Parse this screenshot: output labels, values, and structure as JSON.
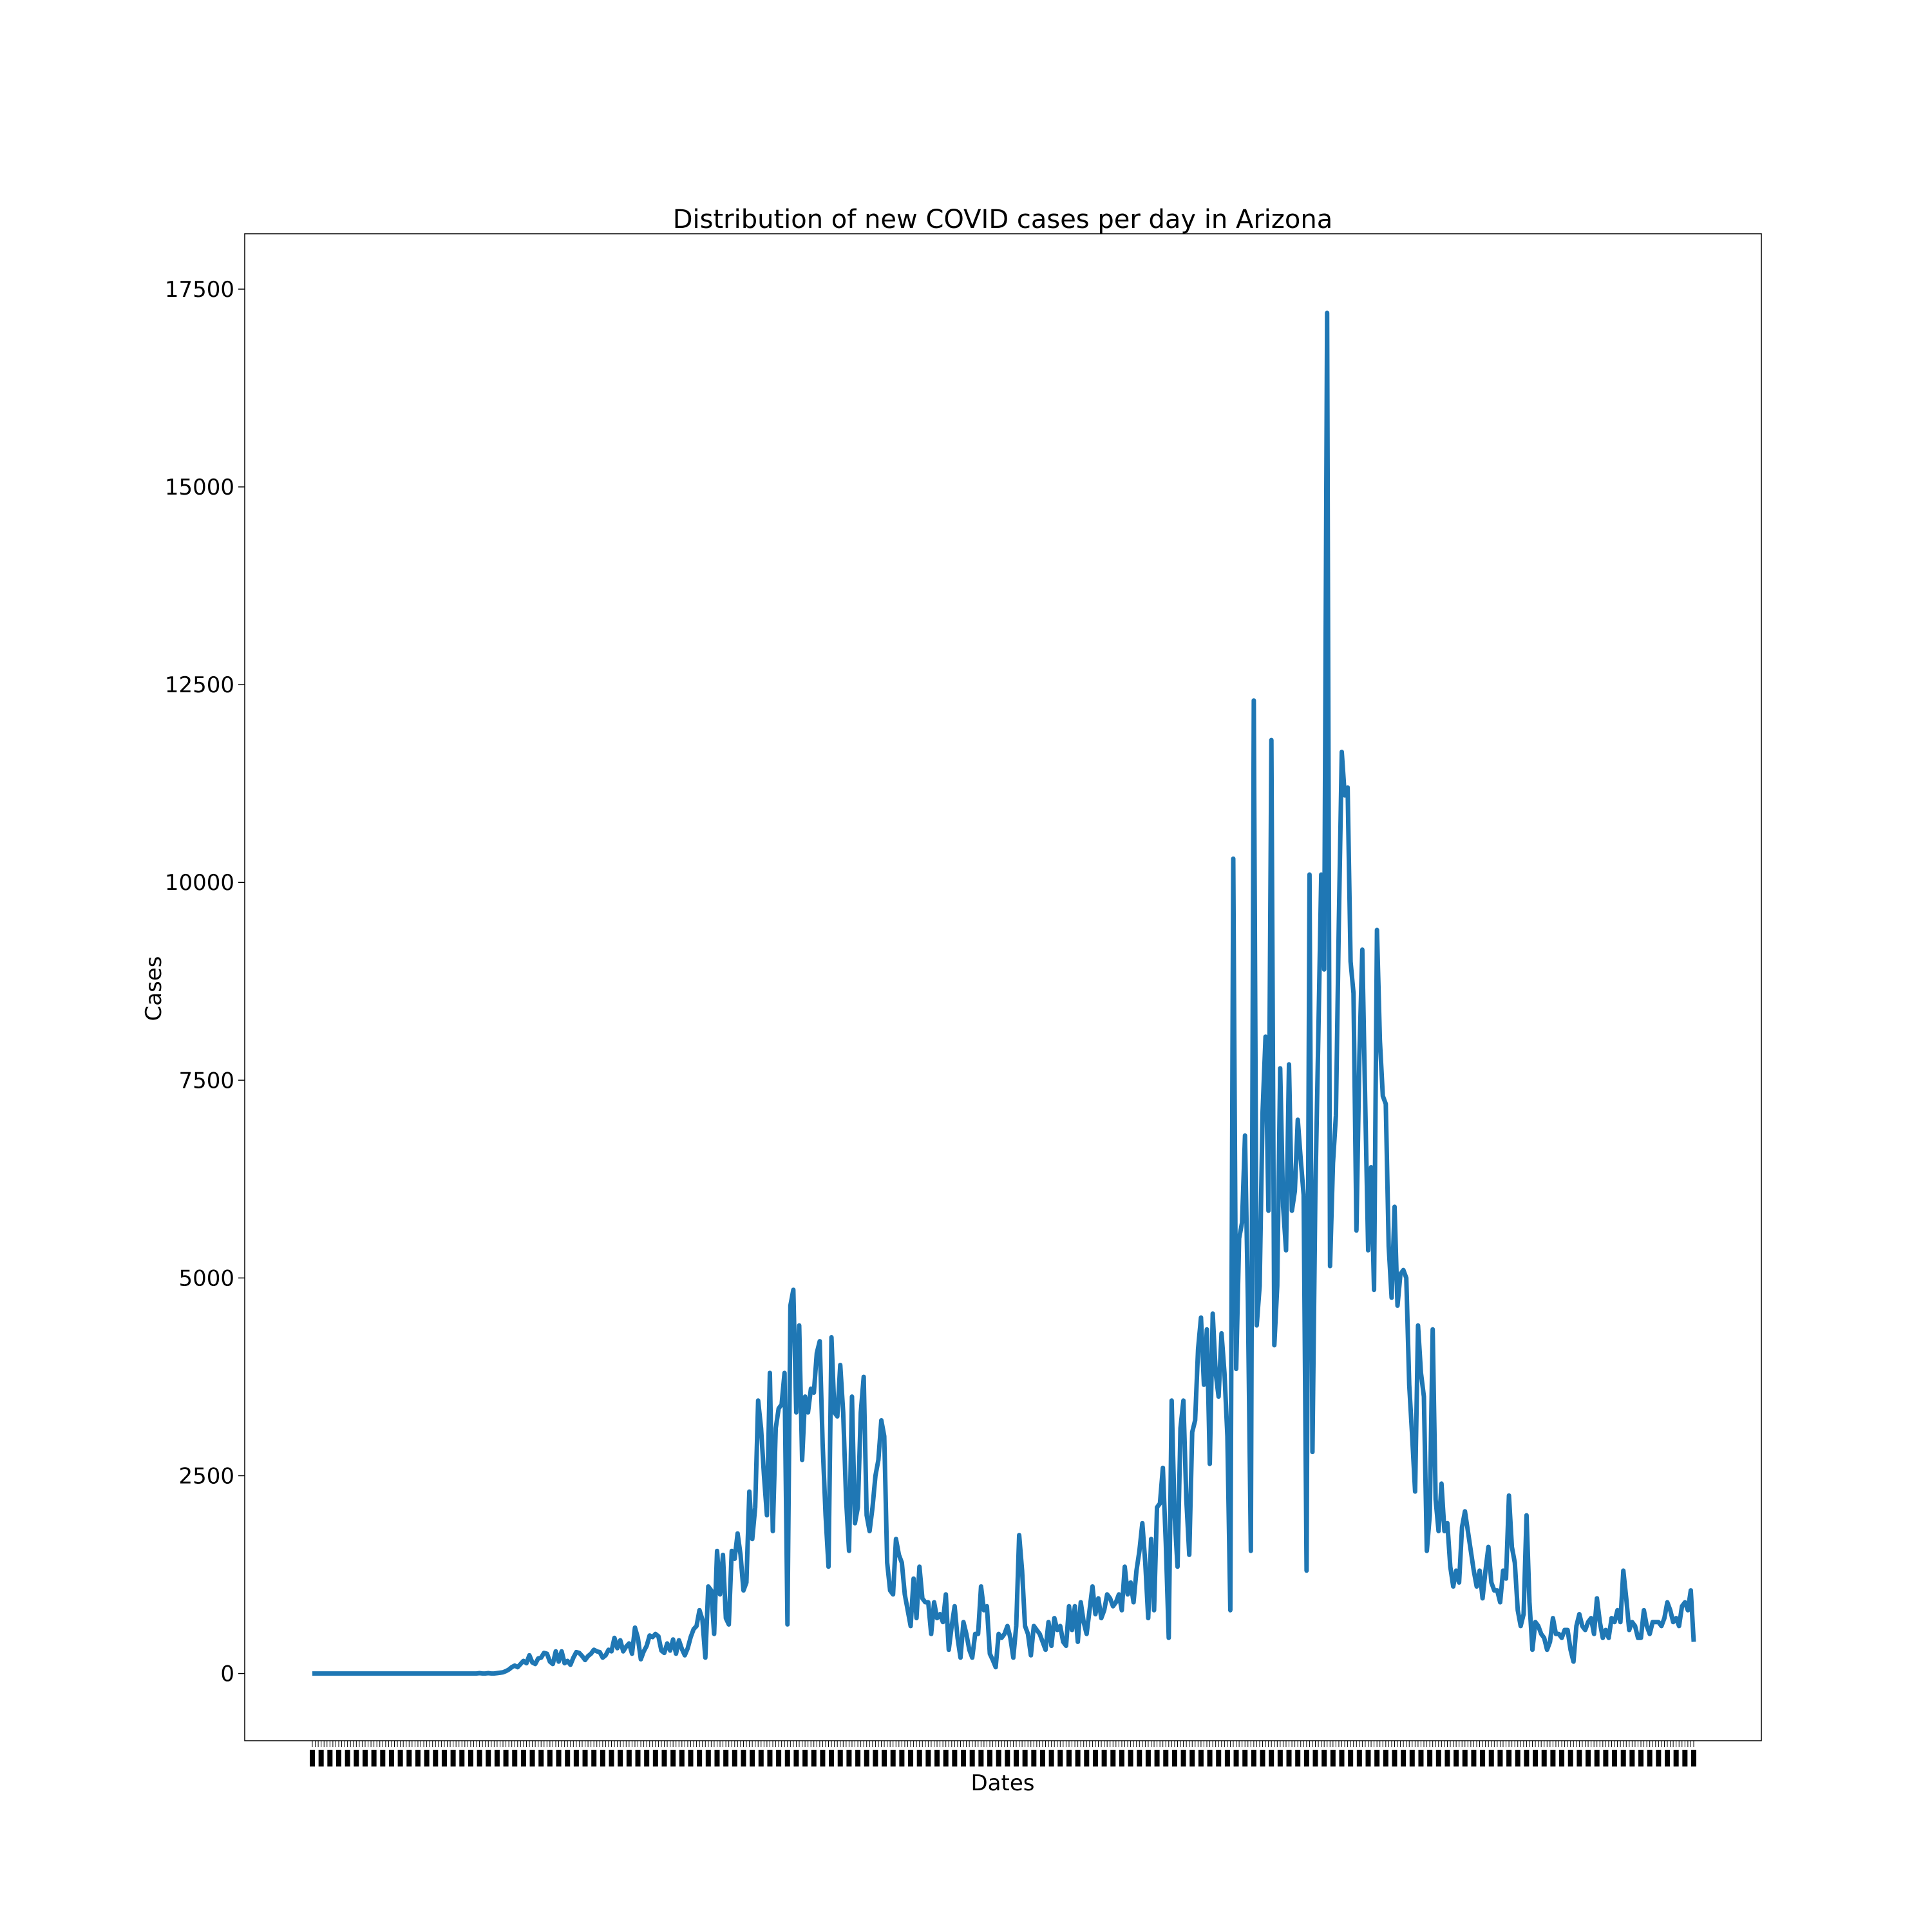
{
  "chart_data": {
    "type": "line",
    "title": "Distribution of new COVID cases per day in Arizona",
    "xlabel": "Dates",
    "ylabel": "Cases",
    "ylim": [
      -850,
      18200
    ],
    "yticks": [
      0,
      2500,
      5000,
      7500,
      10000,
      12500,
      15000,
      17500
    ],
    "ytick_labels": [
      "0",
      "2500",
      "5000",
      "7500",
      "10000",
      "12500",
      "15000",
      "17500"
    ],
    "xtick_labels_note": "",
    "grid": false,
    "legend": "none",
    "line_color": "#1f77b4",
    "series": [
      {
        "values": [
          0,
          0,
          0,
          0,
          0,
          0,
          0,
          0,
          0,
          0,
          0,
          0,
          0,
          0,
          0,
          0,
          0,
          0,
          0,
          0,
          0,
          0,
          0,
          0,
          0,
          0,
          0,
          0,
          0,
          0,
          0,
          0,
          0,
          0,
          0,
          0,
          0,
          0,
          0,
          0,
          0,
          0,
          0,
          0,
          0,
          0,
          0,
          0,
          0,
          0,
          0,
          0,
          0,
          0,
          0,
          0,
          0,
          5,
          0,
          0,
          5,
          0,
          0,
          5,
          10,
          15,
          30,
          50,
          80,
          100,
          80,
          120,
          160,
          130,
          230,
          140,
          120,
          190,
          200,
          260,
          250,
          150,
          120,
          280,
          150,
          280,
          130,
          160,
          110,
          200,
          270,
          260,
          220,
          170,
          220,
          250,
          300,
          280,
          270,
          200,
          230,
          300,
          280,
          450,
          320,
          420,
          280,
          340,
          380,
          250,
          580,
          450,
          180,
          280,
          350,
          480,
          460,
          500,
          470,
          290,
          260,
          380,
          290,
          430,
          250,
          420,
          310,
          230,
          320,
          460,
          560,
          600,
          800,
          680,
          200,
          1100,
          1050,
          500,
          1550,
          1000,
          1500,
          700,
          620,
          1550,
          1450,
          1770,
          1500,
          1050,
          1150,
          2300,
          1700,
          2100,
          3450,
          3100,
          2500,
          2000,
          3800,
          1800,
          3100,
          3350,
          3400,
          3800,
          620,
          4650,
          4850,
          3300,
          4400,
          2700,
          3500,
          3300,
          3600,
          3550,
          4050,
          4200,
          2900,
          2000,
          1350,
          4250,
          3300,
          3250,
          3900,
          3300,
          2200,
          1550,
          3500,
          1900,
          2100,
          3300,
          3750,
          2000,
          1800,
          2100,
          2500,
          2700,
          3200,
          3000,
          1400,
          1050,
          1000,
          1700,
          1500,
          1400,
          1000,
          800,
          600,
          1200,
          700,
          1350,
          950,
          900,
          900,
          500,
          900,
          700,
          750,
          650,
          1000,
          300,
          600,
          850,
          450,
          200,
          650,
          500,
          300,
          200,
          500,
          500,
          1100,
          800,
          850,
          250,
          170,
          80,
          500,
          450,
          500,
          600,
          450,
          200,
          600,
          1750,
          1300,
          600,
          500,
          230,
          600,
          550,
          500,
          400,
          300,
          650,
          350,
          700,
          550,
          600,
          400,
          350,
          850,
          550,
          850,
          400,
          900,
          650,
          500,
          800,
          1100,
          750,
          950,
          700,
          800,
          1000,
          950,
          850,
          900,
          1000,
          800,
          1350,
          1000,
          1150,
          900,
          1300,
          1550,
          1900,
          1400,
          700,
          1700,
          800,
          2100,
          2150,
          2600,
          1650,
          450,
          3450,
          2000,
          1350,
          3100,
          3450,
          2200,
          1500,
          3050,
          3200,
          4100,
          4500,
          3650,
          4350,
          2650,
          4550,
          3800,
          3500,
          4300,
          3800,
          3000,
          800,
          10300,
          3850,
          5500,
          5700,
          6800,
          4700,
          1550,
          12300,
          4400,
          4900,
          7100,
          8050,
          5850,
          11800,
          4150,
          4900,
          7650,
          5900,
          5350,
          7700,
          5850,
          6100,
          7000,
          6500,
          6050,
          1300,
          10100,
          2800,
          6100,
          8050,
          10100,
          8900,
          17200,
          5150,
          6450,
          7050,
          9500,
          11650,
          11100,
          11200,
          9000,
          8600,
          5600,
          7800,
          9150,
          7200,
          5350,
          6400,
          4850,
          9400,
          8000,
          7300,
          7200,
          5400,
          4750,
          5900,
          4650,
          5050,
          5100,
          5000,
          3650,
          3000,
          2300,
          4400,
          3800,
          3500,
          1550,
          2000,
          4350,
          2200,
          1800,
          2400,
          1800,
          1900,
          1350,
          1100,
          1300,
          1150,
          1850,
          2050,
          1800,
          1550,
          1300,
          1100,
          1300,
          950,
          1300,
          1600,
          1150,
          1050,
          1050,
          900,
          1300,
          1200,
          2250,
          1600,
          1400,
          800,
          600,
          750,
          2000,
          900,
          300,
          650,
          600,
          500,
          450,
          300,
          400,
          700,
          500,
          500,
          450,
          550,
          550,
          300,
          150,
          600,
          750,
          600,
          550,
          650,
          700,
          500,
          950,
          650,
          450,
          550,
          450,
          700,
          650,
          800,
          650,
          1300,
          950,
          550,
          650,
          600,
          450,
          450,
          800,
          600,
          500,
          650,
          650,
          650,
          600,
          700,
          900,
          800,
          650,
          700,
          600,
          850,
          900,
          800,
          1050,
          400
        ]
      }
    ]
  }
}
